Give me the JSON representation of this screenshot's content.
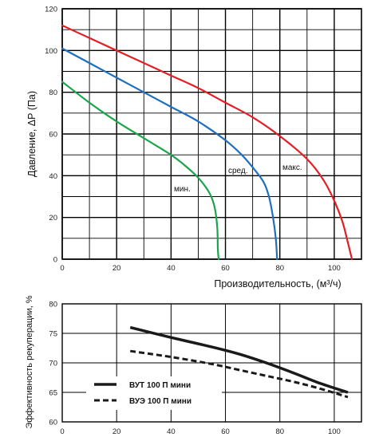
{
  "chart_data": [
    {
      "type": "line",
      "title": "",
      "xlabel": "Производительность, (м³/ч)",
      "ylabel": "Давление, ΔP (Па)",
      "xlim": [
        0,
        110
      ],
      "ylim": [
        0,
        120
      ],
      "x_ticks": [
        "0",
        "20",
        "40",
        "60",
        "80",
        "100"
      ],
      "y_ticks": [
        "0",
        "20",
        "40",
        "60",
        "80",
        "100",
        "120"
      ],
      "grid": true,
      "series": [
        {
          "name": "мин.",
          "color": "#1aa64b",
          "x": [
            0,
            10,
            20,
            30,
            40,
            45,
            50,
            54,
            56,
            57,
            57.2,
            57.5
          ],
          "y": [
            85,
            75,
            66,
            58,
            50,
            45,
            39,
            32,
            25,
            15,
            5,
            0
          ]
        },
        {
          "name": "сред.",
          "color": "#1f6fc0",
          "x": [
            0,
            10,
            20,
            30,
            40,
            50,
            60,
            66,
            70,
            74,
            76,
            77.5,
            78.5,
            79
          ],
          "y": [
            101,
            94,
            87,
            80,
            73,
            66,
            57,
            50,
            44,
            37,
            30,
            20,
            10,
            0
          ]
        },
        {
          "name": "макс.",
          "color": "#e31e24",
          "x": [
            0,
            10,
            20,
            30,
            40,
            50,
            60,
            70,
            80,
            90,
            96,
            100,
            103,
            105,
            106.5
          ],
          "y": [
            112,
            106,
            100,
            94,
            88,
            82,
            75,
            68,
            59,
            48,
            38,
            28,
            18,
            8,
            0
          ]
        }
      ]
    },
    {
      "type": "line",
      "title": "",
      "xlabel": "",
      "ylabel": "Эффективность рекуперации, %",
      "xlim": [
        0,
        110
      ],
      "ylim": [
        60,
        80
      ],
      "x_ticks": [
        "0",
        "20",
        "40",
        "60",
        "80",
        "100"
      ],
      "y_ticks": [
        "60",
        "65",
        "70",
        "75",
        "80"
      ],
      "grid": true,
      "legend_position": "bottom-left",
      "series": [
        {
          "name": "ВУТ 100 П мини",
          "style": "solid",
          "color": "#1a1a1a",
          "x": [
            25,
            40,
            55,
            65,
            75,
            85,
            95,
            105
          ],
          "y": [
            76,
            74.3,
            72.7,
            71.5,
            70,
            68.3,
            66.5,
            65
          ]
        },
        {
          "name": "ВУЭ 100 П мини",
          "style": "dashed",
          "color": "#1a1a1a",
          "x": [
            25,
            40,
            55,
            65,
            75,
            85,
            95,
            105
          ],
          "y": [
            72,
            71,
            69.8,
            68.8,
            67.8,
            66.8,
            65.6,
            64.2
          ]
        }
      ]
    }
  ]
}
